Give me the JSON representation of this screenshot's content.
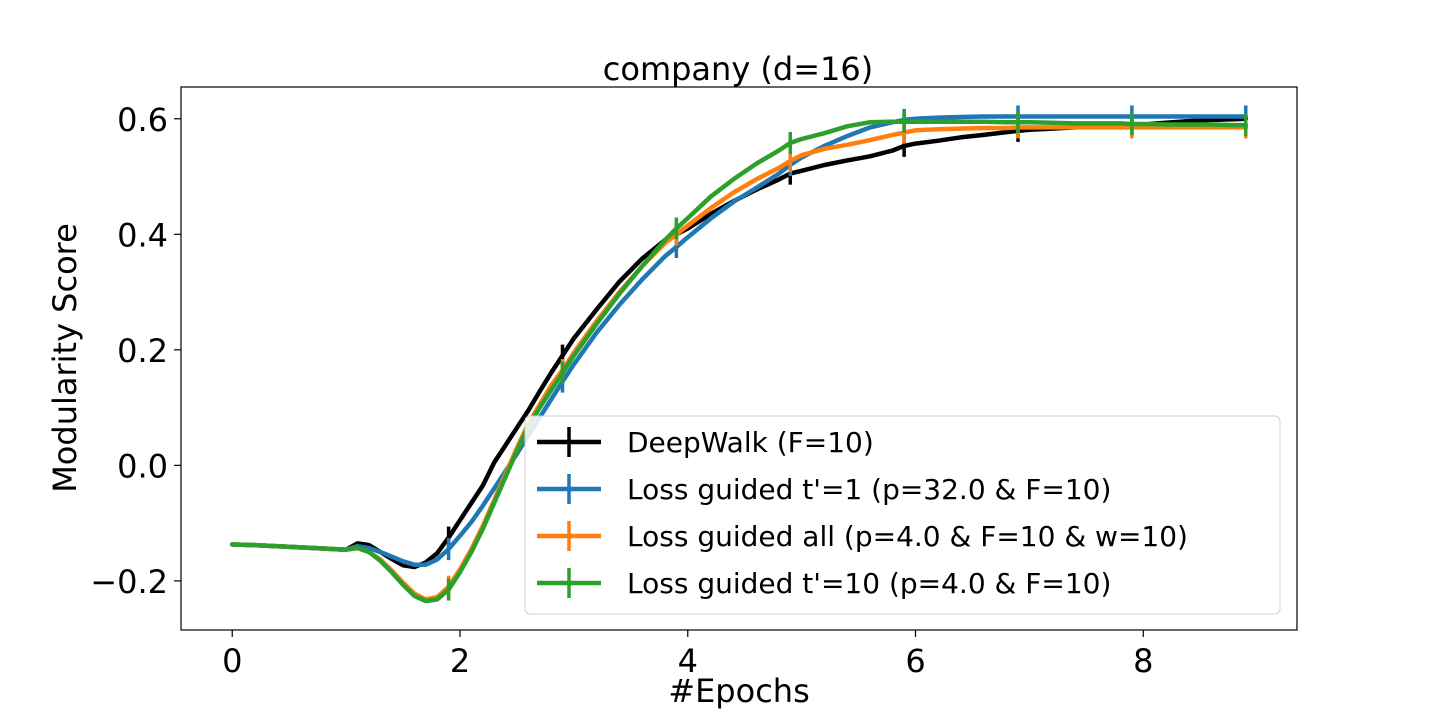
{
  "chart_data": {
    "type": "line",
    "title": "company (d=16)",
    "xlabel": "#Epochs",
    "ylabel": "Modularity Score",
    "xlim": [
      -0.45,
      9.35
    ],
    "ylim": [
      -0.285,
      0.655
    ],
    "xticks": [
      0,
      2,
      4,
      6,
      8
    ],
    "xtick_labels": [
      "0",
      "2",
      "4",
      "6",
      "8"
    ],
    "yticks": [
      -0.2,
      0.0,
      0.2,
      0.4,
      0.6
    ],
    "ytick_labels": [
      "−0.2",
      "0.0",
      "0.2",
      "0.4",
      "0.6"
    ],
    "grid": false,
    "legend_position": "lower-right",
    "series": [
      {
        "name": "DeepWalk (F=10)",
        "color": "#000000",
        "x": [
          0,
          0.2,
          0.4,
          0.6,
          0.8,
          1.0,
          1.1,
          1.2,
          1.3,
          1.4,
          1.5,
          1.6,
          1.7,
          1.8,
          1.9,
          2.0,
          2.1,
          2.2,
          2.3,
          2.4,
          2.5,
          2.6,
          2.7,
          2.8,
          2.9,
          3.0,
          3.2,
          3.4,
          3.6,
          3.8,
          3.9,
          4.0,
          4.2,
          4.4,
          4.6,
          4.8,
          4.9,
          5.0,
          5.2,
          5.4,
          5.6,
          5.8,
          5.9,
          6.0,
          6.2,
          6.4,
          6.6,
          6.8,
          6.9,
          7.0,
          7.2,
          7.4,
          7.6,
          7.8,
          7.9,
          8.0,
          8.2,
          8.4,
          8.6,
          8.8,
          8.9
        ],
        "y": [
          -0.137,
          -0.138,
          -0.14,
          -0.142,
          -0.144,
          -0.146,
          -0.135,
          -0.138,
          -0.15,
          -0.162,
          -0.173,
          -0.176,
          -0.168,
          -0.152,
          -0.125,
          -0.095,
          -0.065,
          -0.035,
          0.005,
          0.035,
          0.065,
          0.095,
          0.128,
          0.16,
          0.19,
          0.22,
          0.27,
          0.318,
          0.358,
          0.39,
          0.4,
          0.41,
          0.435,
          0.457,
          0.477,
          0.495,
          0.505,
          0.51,
          0.52,
          0.528,
          0.535,
          0.545,
          0.553,
          0.557,
          0.562,
          0.568,
          0.572,
          0.577,
          0.579,
          0.581,
          0.583,
          0.585,
          0.587,
          0.588,
          0.589,
          0.59,
          0.593,
          0.596,
          0.598,
          0.599,
          0.6
        ],
        "errorbar_x": [
          1.9,
          2.9,
          3.9,
          4.9,
          5.9,
          6.9,
          7.9,
          8.9
        ]
      },
      {
        "name": "Loss guided  t'=1  (p=32.0 & F=10)",
        "color": "#1f77b4",
        "x": [
          0,
          0.2,
          0.4,
          0.6,
          0.8,
          1.0,
          1.1,
          1.2,
          1.3,
          1.4,
          1.5,
          1.6,
          1.7,
          1.8,
          1.9,
          2.0,
          2.1,
          2.2,
          2.3,
          2.4,
          2.5,
          2.6,
          2.7,
          2.8,
          2.9,
          3.0,
          3.2,
          3.4,
          3.6,
          3.8,
          3.9,
          4.0,
          4.2,
          4.4,
          4.6,
          4.8,
          4.9,
          5.0,
          5.2,
          5.4,
          5.6,
          5.8,
          5.9,
          6.0,
          6.2,
          6.4,
          6.6,
          6.8,
          6.9,
          7.0,
          7.2,
          7.4,
          7.6,
          7.8,
          7.9,
          8.0,
          8.2,
          8.4,
          8.6,
          8.8,
          8.9
        ],
        "y": [
          -0.137,
          -0.138,
          -0.14,
          -0.142,
          -0.144,
          -0.146,
          -0.14,
          -0.143,
          -0.15,
          -0.158,
          -0.166,
          -0.172,
          -0.172,
          -0.163,
          -0.145,
          -0.122,
          -0.098,
          -0.07,
          -0.04,
          -0.01,
          0.02,
          0.052,
          0.083,
          0.114,
          0.145,
          0.175,
          0.23,
          0.278,
          0.322,
          0.362,
          0.378,
          0.395,
          0.427,
          0.456,
          0.48,
          0.505,
          0.52,
          0.533,
          0.553,
          0.57,
          0.585,
          0.594,
          0.598,
          0.6,
          0.602,
          0.603,
          0.604,
          0.604,
          0.604,
          0.604,
          0.604,
          0.604,
          0.604,
          0.604,
          0.604,
          0.604,
          0.604,
          0.604,
          0.604,
          0.604,
          0.604
        ],
        "errorbar_x": [
          1.9,
          2.9,
          3.9,
          4.9,
          5.9,
          6.9,
          7.9,
          8.9
        ]
      },
      {
        "name": "Loss guided all (p=4.0 & F=10 & w=10)",
        "color": "#ff7f0e",
        "x": [
          0,
          0.2,
          0.4,
          0.6,
          0.8,
          1.0,
          1.1,
          1.2,
          1.3,
          1.4,
          1.5,
          1.6,
          1.7,
          1.8,
          1.9,
          2.0,
          2.1,
          2.2,
          2.3,
          2.4,
          2.5,
          2.6,
          2.7,
          2.8,
          2.9,
          3.0,
          3.2,
          3.4,
          3.6,
          3.8,
          3.9,
          4.0,
          4.2,
          4.4,
          4.6,
          4.8,
          4.9,
          5.0,
          5.2,
          5.4,
          5.6,
          5.8,
          5.9,
          6.0,
          6.2,
          6.4,
          6.6,
          6.8,
          6.9,
          7.0,
          7.2,
          7.4,
          7.6,
          7.8,
          7.9,
          8.0,
          8.2,
          8.4,
          8.6,
          8.8,
          8.9
        ],
        "y": [
          -0.137,
          -0.138,
          -0.14,
          -0.142,
          -0.144,
          -0.146,
          -0.143,
          -0.15,
          -0.163,
          -0.182,
          -0.203,
          -0.222,
          -0.232,
          -0.228,
          -0.21,
          -0.18,
          -0.145,
          -0.105,
          -0.06,
          -0.015,
          0.03,
          0.072,
          0.105,
          0.138,
          0.165,
          0.195,
          0.25,
          0.3,
          0.345,
          0.385,
          0.4,
          0.415,
          0.445,
          0.472,
          0.495,
          0.515,
          0.527,
          0.537,
          0.548,
          0.555,
          0.563,
          0.572,
          0.576,
          0.58,
          0.582,
          0.583,
          0.584,
          0.584,
          0.585,
          0.585,
          0.585,
          0.585,
          0.585,
          0.585,
          0.585,
          0.585,
          0.585,
          0.585,
          0.585,
          0.585,
          0.585
        ],
        "errorbar_x": [
          1.9,
          2.9,
          3.9,
          4.9,
          5.9,
          6.9,
          7.9,
          8.9
        ]
      },
      {
        "name": "Loss guided  t'=10  (p=4.0 & F=10)",
        "color": "#2ca02c",
        "x": [
          0,
          0.2,
          0.4,
          0.6,
          0.8,
          1.0,
          1.1,
          1.2,
          1.3,
          1.4,
          1.5,
          1.6,
          1.7,
          1.8,
          1.9,
          2.0,
          2.1,
          2.2,
          2.3,
          2.4,
          2.5,
          2.6,
          2.7,
          2.8,
          2.9,
          3.0,
          3.2,
          3.4,
          3.6,
          3.8,
          3.9,
          4.0,
          4.2,
          4.4,
          4.6,
          4.8,
          4.9,
          5.0,
          5.2,
          5.4,
          5.6,
          5.8,
          5.9,
          6.0,
          6.2,
          6.4,
          6.6,
          6.8,
          6.9,
          7.0,
          7.2,
          7.4,
          7.6,
          7.8,
          7.9,
          8.0,
          8.2,
          8.4,
          8.6,
          8.8,
          8.9
        ],
        "y": [
          -0.137,
          -0.138,
          -0.14,
          -0.142,
          -0.144,
          -0.146,
          -0.143,
          -0.15,
          -0.165,
          -0.185,
          -0.207,
          -0.226,
          -0.235,
          -0.232,
          -0.215,
          -0.185,
          -0.15,
          -0.11,
          -0.065,
          -0.02,
          0.025,
          0.067,
          0.1,
          0.13,
          0.16,
          0.19,
          0.245,
          0.297,
          0.345,
          0.39,
          0.41,
          0.428,
          0.465,
          0.495,
          0.522,
          0.545,
          0.558,
          0.565,
          0.575,
          0.587,
          0.594,
          0.595,
          0.595,
          0.595,
          0.595,
          0.595,
          0.595,
          0.594,
          0.594,
          0.594,
          0.593,
          0.592,
          0.592,
          0.592,
          0.591,
          0.591,
          0.59,
          0.59,
          0.59,
          0.589,
          0.589
        ],
        "errorbar_x": [
          1.9,
          2.9,
          3.9,
          4.9,
          5.9,
          6.9,
          7.9,
          8.9
        ]
      }
    ]
  }
}
